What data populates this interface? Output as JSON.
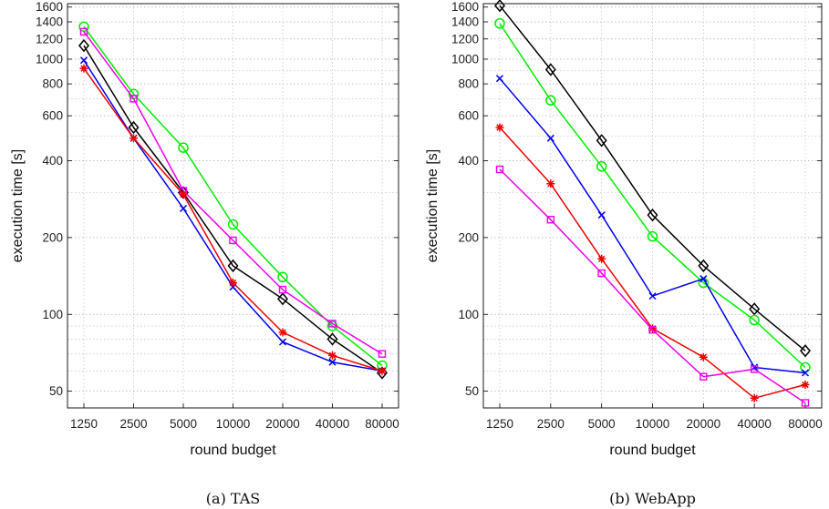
{
  "chart_data": [
    {
      "type": "line",
      "caption": "(a) TAS",
      "xlabel": "round budget",
      "ylabel": "execution time [s]",
      "categories": [
        "1250",
        "2500",
        "5000",
        "10000",
        "20000",
        "40000",
        "80000"
      ],
      "yscale": "log",
      "ylim": [
        43,
        1650
      ],
      "yticks": [
        50,
        100,
        200,
        400,
        600,
        800,
        1000,
        1200,
        1400,
        1600
      ],
      "grid": true,
      "series": [
        {
          "color": "#00ee00",
          "marker": "circle",
          "values": [
            1340,
            730,
            450,
            225,
            140,
            90,
            63
          ]
        },
        {
          "color": "#000000",
          "marker": "diamond",
          "values": [
            1130,
            540,
            300,
            155,
            115,
            80,
            59
          ]
        },
        {
          "color": "#ee00ee",
          "marker": "square",
          "values": [
            1280,
            700,
            305,
            195,
            125,
            92,
            70
          ]
        },
        {
          "color": "#0000ee",
          "marker": "x",
          "values": [
            990,
            490,
            260,
            128,
            78,
            65,
            60
          ]
        },
        {
          "color": "#ee0000",
          "marker": "star",
          "values": [
            920,
            490,
            295,
            133,
            85,
            69,
            60
          ]
        }
      ]
    },
    {
      "type": "line",
      "caption": "(b) WebApp",
      "xlabel": "round budget",
      "ylabel": "execution time [s]",
      "categories": [
        "1250",
        "2500",
        "5000",
        "10000",
        "20000",
        "40000",
        "80000"
      ],
      "yscale": "log",
      "ylim": [
        43,
        1650
      ],
      "yticks": [
        50,
        100,
        200,
        400,
        600,
        800,
        1000,
        1200,
        1400,
        1600
      ],
      "grid": true,
      "series": [
        {
          "color": "#000000",
          "marker": "diamond",
          "values": [
            1620,
            910,
            480,
            245,
            155,
            105,
            72
          ]
        },
        {
          "color": "#00ee00",
          "marker": "circle",
          "values": [
            1380,
            690,
            380,
            202,
            133,
            95,
            62
          ]
        },
        {
          "color": "#0000ee",
          "marker": "x",
          "values": [
            840,
            490,
            245,
            118,
            138,
            62,
            59
          ]
        },
        {
          "color": "#ee0000",
          "marker": "star",
          "values": [
            540,
            325,
            165,
            88,
            68,
            47,
            53
          ]
        },
        {
          "color": "#ee00ee",
          "marker": "square",
          "values": [
            370,
            235,
            145,
            87,
            57,
            61,
            45
          ]
        }
      ]
    }
  ]
}
